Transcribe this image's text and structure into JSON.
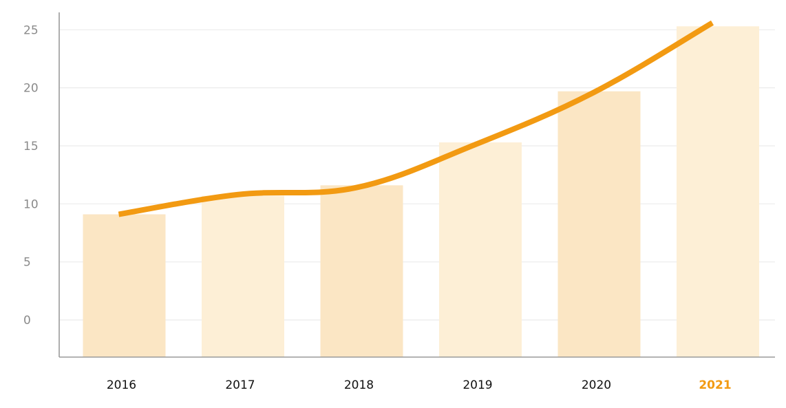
{
  "chart_data": {
    "type": "bar",
    "title": "",
    "xlabel": "",
    "ylabel": "",
    "categories": [
      "2016",
      "2017",
      "2018",
      "2019",
      "2020",
      "2021"
    ],
    "highlight_category": "2021",
    "yticks": [
      "0",
      "5",
      "10",
      "15",
      "20",
      "25"
    ],
    "ylim": [
      -3.2,
      26.5
    ],
    "grid": true,
    "series": [
      {
        "type": "bar",
        "values": [
          9.1,
          10.7,
          11.6,
          15.3,
          19.7,
          25.3
        ]
      },
      {
        "type": "line",
        "values": [
          9.1,
          10.8,
          11.4,
          15.1,
          19.6,
          25.6
        ]
      }
    ],
    "colors": {
      "line": "#f29a12",
      "bar_light": "#fdefd6",
      "bar_dark": "#fbe6c4",
      "highlight_label": "#f29a12",
      "grid": "#ebebeb",
      "axis": "#9a9a9a"
    }
  }
}
